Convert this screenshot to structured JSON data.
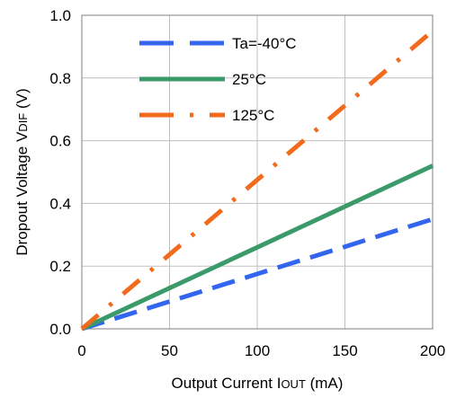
{
  "chart_data": {
    "type": "line",
    "title": "",
    "xlabel": {
      "main": "Output Current I",
      "sub": "OUT",
      "tail": " (mA)"
    },
    "ylabel": {
      "main": "Dropout Voltage V",
      "sub": "DIF",
      "tail": " (V)"
    },
    "xlim": [
      0,
      200
    ],
    "ylim": [
      0,
      1.0
    ],
    "x_ticks": [
      0,
      50,
      100,
      150,
      200
    ],
    "y_ticks": [
      0,
      0.2,
      0.4,
      0.6,
      0.8,
      1.0
    ],
    "x_tick_labels": [
      "0",
      "50",
      "100",
      "150",
      "200"
    ],
    "y_tick_labels": [
      "0.0",
      "0.2",
      "0.4",
      "0.6",
      "0.8",
      "1.0"
    ],
    "grid": true,
    "legend_position": "top-left",
    "series": [
      {
        "name": "Ta=-40°C",
        "color": "#3366ee",
        "style": "dash",
        "x": [
          0,
          50,
          100,
          150,
          200
        ],
        "y": [
          0,
          0.087,
          0.175,
          0.262,
          0.35
        ]
      },
      {
        "name": "25°C",
        "color": "#3a9a6a",
        "style": "solid",
        "x": [
          0,
          50,
          100,
          150,
          200
        ],
        "y": [
          0,
          0.13,
          0.26,
          0.39,
          0.52
        ]
      },
      {
        "name": "125°C",
        "color": "#f26b1d",
        "style": "dashdot",
        "x": [
          0,
          50,
          100,
          150,
          200
        ],
        "y": [
          0,
          0.237,
          0.475,
          0.712,
          0.95
        ]
      }
    ]
  }
}
